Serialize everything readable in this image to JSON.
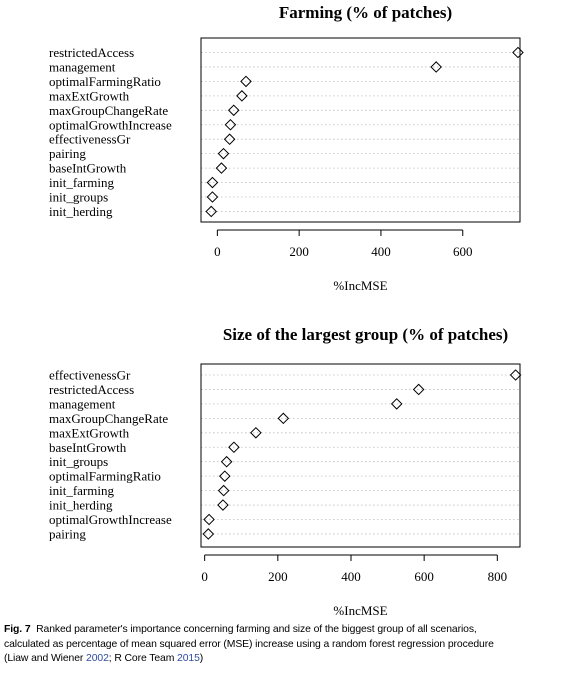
{
  "chart_data": [
    {
      "type": "dot",
      "title": "Farming (% of patches)",
      "xlabel": "%IncMSE",
      "xticks": [
        0,
        200,
        400,
        600
      ],
      "xlim": [
        -40,
        740
      ],
      "grid": "horizontal dotted",
      "categories": [
        "restrictedAccess",
        "management",
        "optimalFarmingRatio",
        "maxExtGrowth",
        "maxGroupChangeRate",
        "optimalGrowthIncrease",
        "effectivenessGr",
        "pairing",
        "baseIntGrowth",
        "init_farming",
        "init_groups",
        "init_herding"
      ],
      "values": [
        735,
        535,
        70,
        60,
        40,
        32,
        30,
        15,
        10,
        -12,
        -12,
        -15
      ]
    },
    {
      "type": "dot",
      "title": "Size of the largest group (% of patches)",
      "xlabel": "%IncMSE",
      "xticks": [
        0,
        200,
        400,
        600,
        800
      ],
      "xlim": [
        -10,
        862
      ],
      "grid": "horizontal dotted",
      "categories": [
        "effectivenessGr",
        "restrictedAccess",
        "management",
        "maxGroupChangeRate",
        "maxExtGrowth",
        "baseIntGrowth",
        "init_groups",
        "optimalFarmingRatio",
        "init_farming",
        "init_herding",
        "optimalGrowthIncrease",
        "pairing"
      ],
      "values": [
        850,
        585,
        525,
        215,
        140,
        80,
        60,
        55,
        52,
        50,
        12,
        10
      ]
    }
  ],
  "caption": {
    "fig_label": "Fig. 7",
    "line1": "Ranked parameter's importance concerning farming and size of the biggest group of all scenarios,",
    "line2": "calculated as percentage of mean squared error (MSE) increase using a random forest regression procedure",
    "line3_pre": "(Liaw and Wiener ",
    "cite1": "2002",
    "line3_mid": "; R Core Team ",
    "cite2": "2015",
    "line3_post": ")"
  }
}
